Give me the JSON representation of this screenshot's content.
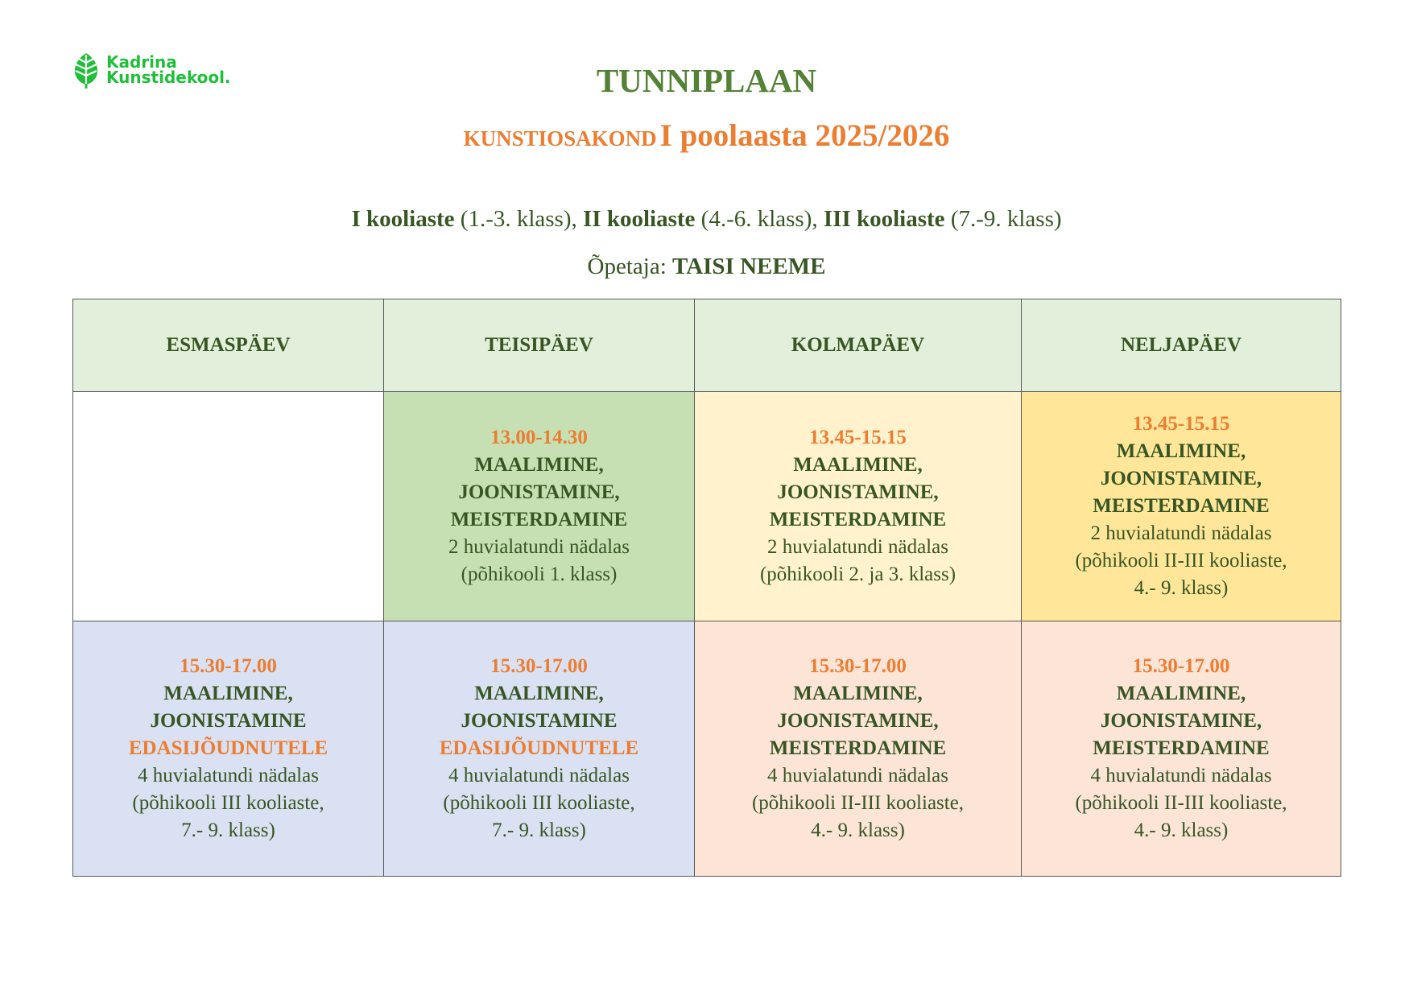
{
  "logo": {
    "line1": "Kadrina",
    "line2": "Kunstidekool."
  },
  "header": {
    "title": "TUNNIPLAAN",
    "subtitle_dept": "KUNSTIOSAKOND",
    "subtitle_term": "I poolaasta 2025/2026",
    "levels": [
      {
        "name": "I kooliaste",
        "range": "(1.-3. klass),"
      },
      {
        "name": "II kooliaste",
        "range": "(4.-6. klass),"
      },
      {
        "name": "III kooliaste",
        "range": "(7.-9. klass)"
      }
    ],
    "teacher_label": "Õpetaja:",
    "teacher_name": "TAISI NEEME"
  },
  "colors": {
    "title": "#538135",
    "accent": "#ed7d31",
    "text": "#375623",
    "header_fill": "#e2efda"
  },
  "table": {
    "days": [
      "ESMASPÄEV",
      "TEISIPÄEV",
      "KOLMAPÄEV",
      "NELJAPÄEV"
    ],
    "rows": [
      [
        null,
        {
          "fill": "#c6e0b4",
          "time": "13.00-14.30",
          "subjects": [
            "MAALIMINE,",
            "JOONISTAMINE,",
            "MEISTERDAMINE"
          ],
          "hours": "2 huvialatundi nädalas",
          "group": [
            "(põhikooli 1. klass)"
          ]
        },
        {
          "fill": "#fff2cc",
          "time": "13.45-15.15",
          "subjects": [
            "MAALIMINE,",
            "JOONISTAMINE,",
            "MEISTERDAMINE"
          ],
          "hours": "2 huvialatundi nädalas",
          "group": [
            "(põhikooli 2. ja 3. klass)"
          ]
        },
        {
          "fill": "#ffe699",
          "time": "13.45-15.15",
          "subjects": [
            "MAALIMINE,",
            "JOONISTAMINE,",
            "MEISTERDAMINE"
          ],
          "hours": "2 huvialatundi nädalas",
          "group": [
            "(põhikooli II-III kooliaste,",
            "4.- 9. klass)"
          ]
        }
      ],
      [
        {
          "fill": "#d9e1f2",
          "time": "15.30-17.00",
          "subjects": [
            "MAALIMINE,",
            "JOONISTAMINE"
          ],
          "advanced": "EDASIJÕUDNUTELE",
          "hours": "4 huvialatundi nädalas",
          "group": [
            "(põhikooli III kooliaste,",
            "7.- 9. klass)"
          ]
        },
        {
          "fill": "#d9e1f2",
          "time": "15.30-17.00",
          "subjects": [
            "MAALIMINE,",
            "JOONISTAMINE"
          ],
          "advanced": "EDASIJÕUDNUTELE",
          "hours": "4 huvialatundi nädalas",
          "group": [
            "(põhikooli III kooliaste,",
            "7.- 9. klass)"
          ]
        },
        {
          "fill": "#fce4d6",
          "time": "15.30-17.00",
          "subjects": [
            "MAALIMINE,",
            "JOONISTAMINE,",
            "MEISTERDAMINE"
          ],
          "hours": "4 huvialatundi nädalas",
          "group": [
            "(põhikooli II-III kooliaste,",
            "4.- 9. klass)"
          ]
        },
        {
          "fill": "#fce4d6",
          "time": "15.30-17.00",
          "subjects": [
            "MAALIMINE,",
            "JOONISTAMINE,",
            "MEISTERDAMINE"
          ],
          "hours": "4 huvialatundi nädalas",
          "group": [
            "(põhikooli II-III kooliaste,",
            "4.- 9. klass)"
          ]
        }
      ]
    ]
  }
}
